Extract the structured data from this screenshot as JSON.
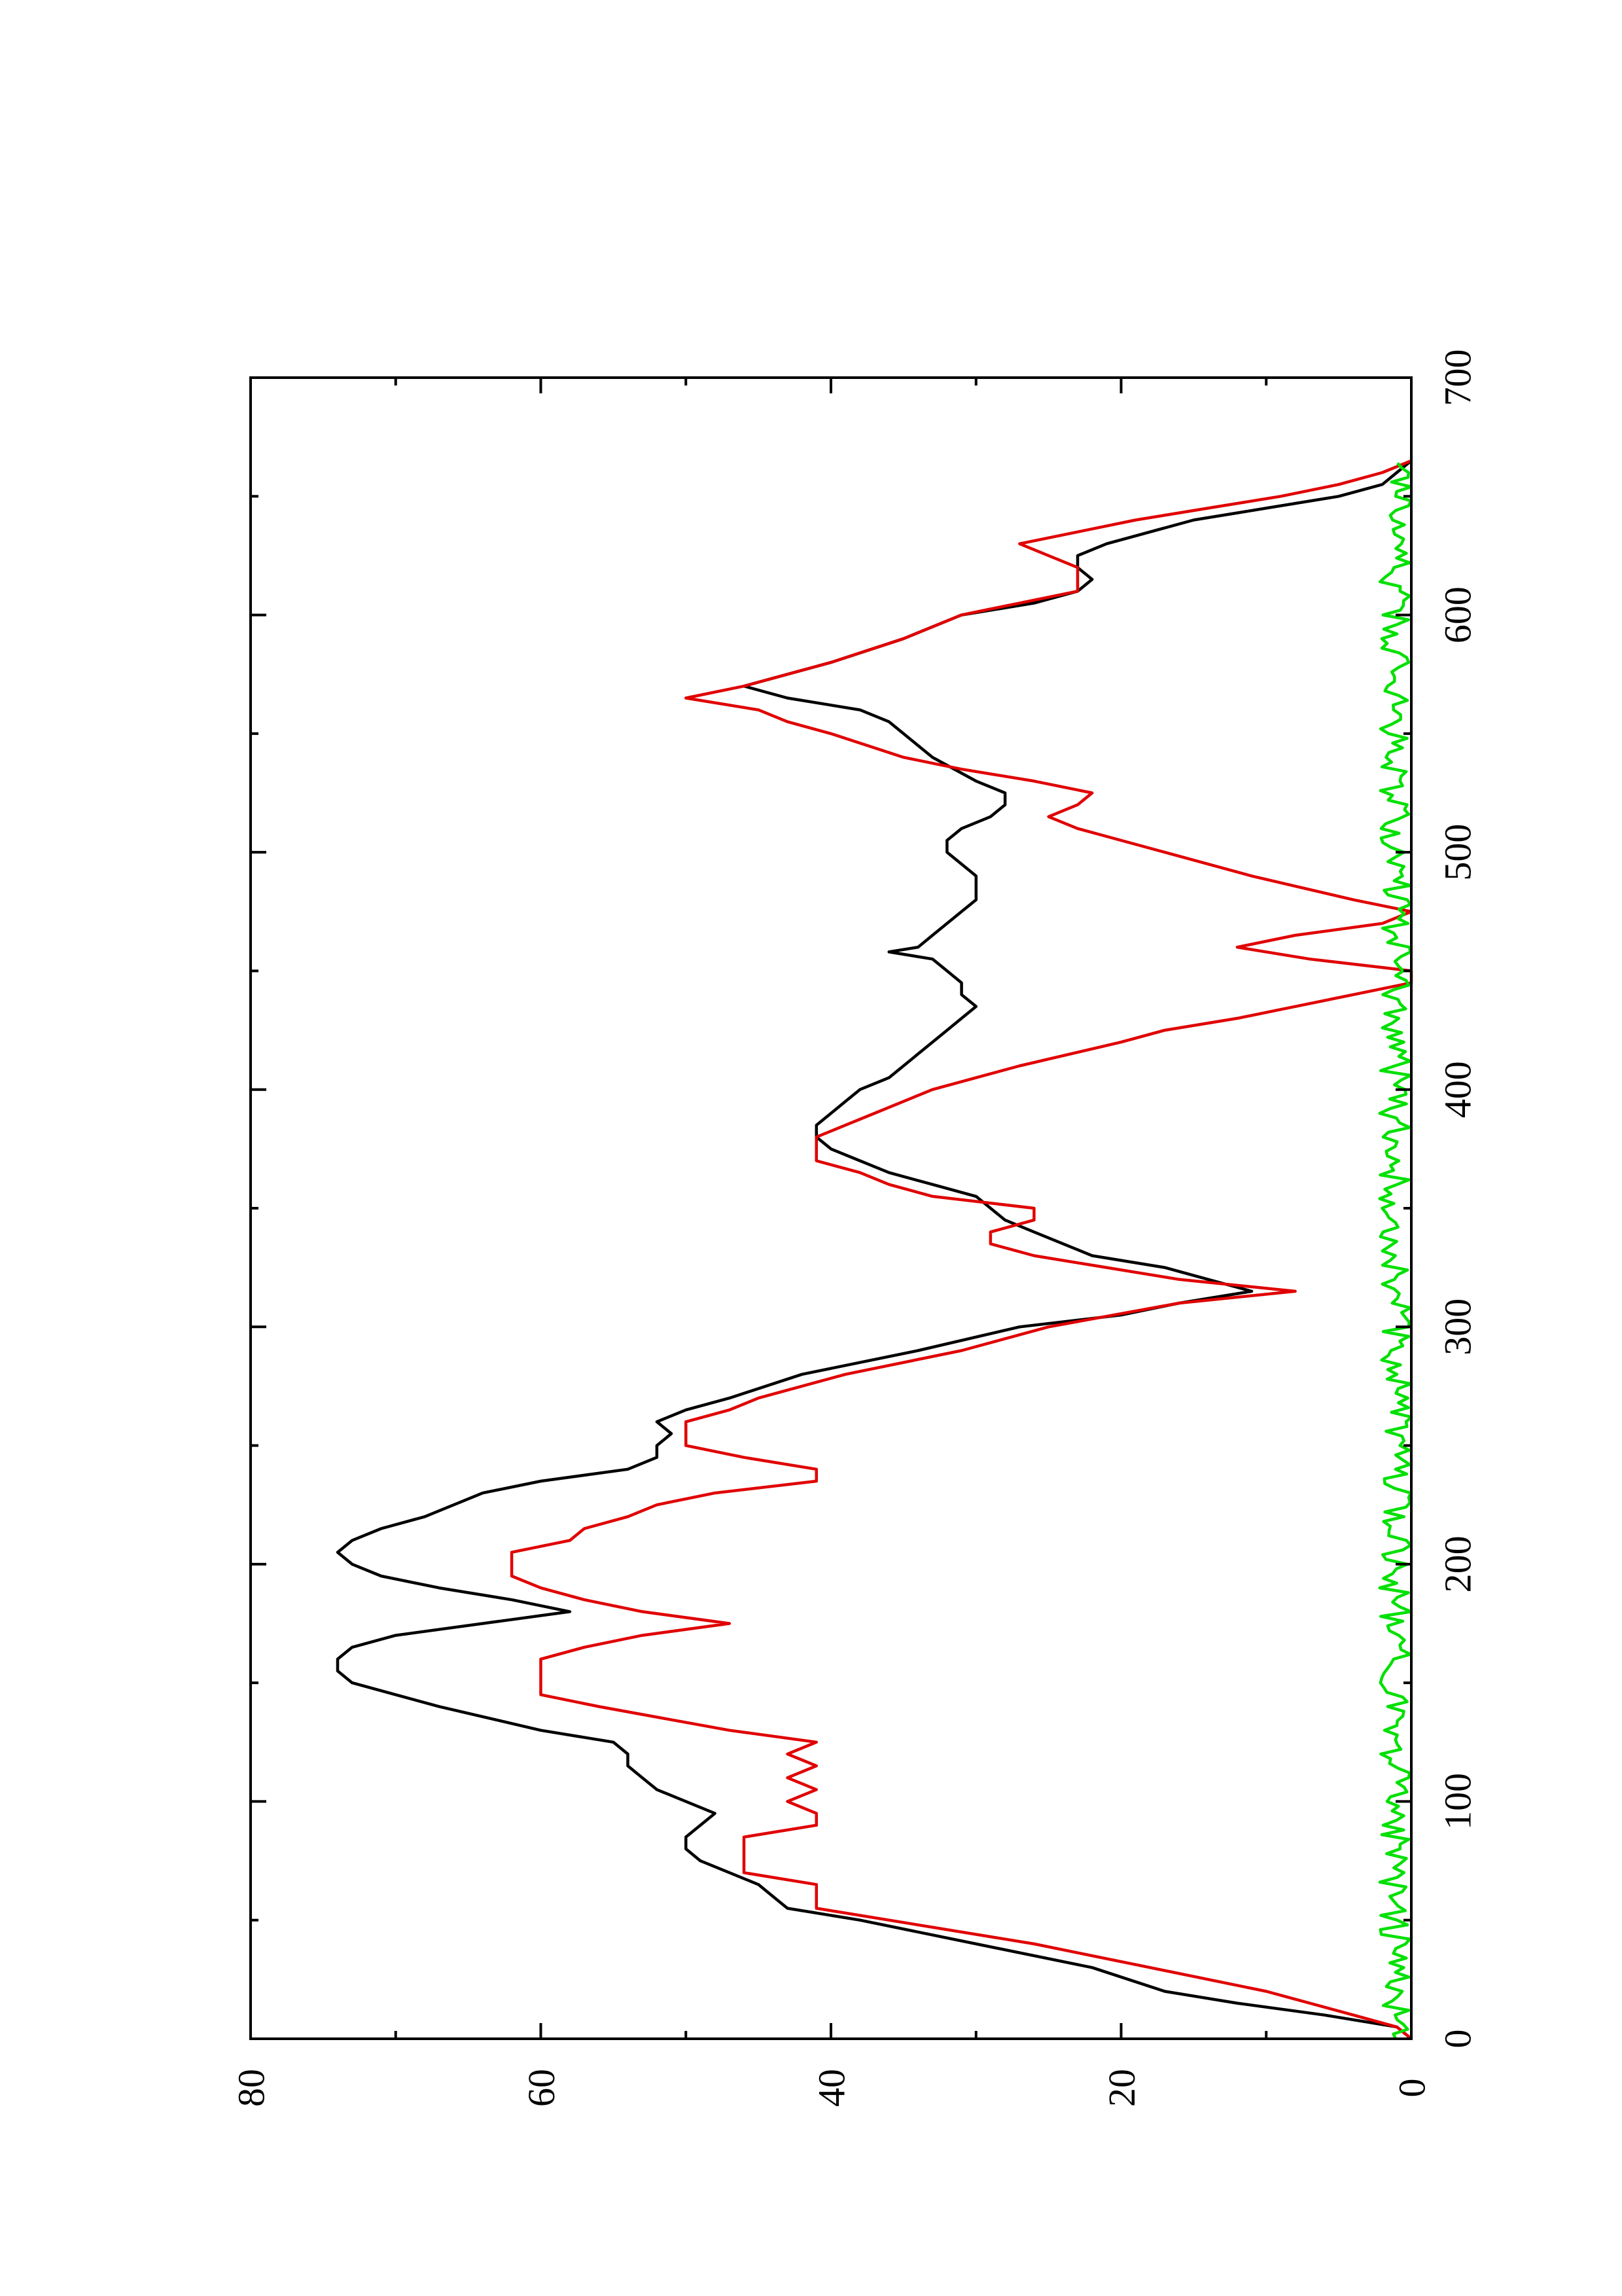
{
  "chart_data": {
    "type": "line",
    "title": "",
    "xlabel": "",
    "ylabel": "",
    "orientation": "rotated 90 degrees counter-clockwise",
    "xlim": [
      0,
      700
    ],
    "ylim": [
      0,
      80
    ],
    "x_ticks": [
      "0",
      "100",
      "200",
      "300",
      "400",
      "500",
      "600",
      "700"
    ],
    "y_ticks": [
      "0",
      "20",
      "40",
      "60",
      "80"
    ],
    "grid": false,
    "legend": "none",
    "series": [
      {
        "color": "#000000",
        "points": [
          [
            0,
            0
          ],
          [
            5,
            1
          ],
          [
            10,
            6
          ],
          [
            15,
            12
          ],
          [
            20,
            17
          ],
          [
            30,
            22
          ],
          [
            40,
            30
          ],
          [
            50,
            38
          ],
          [
            55,
            43
          ],
          [
            60,
            44
          ],
          [
            65,
            45
          ],
          [
            70,
            47
          ],
          [
            75,
            49
          ],
          [
            80,
            50
          ],
          [
            85,
            50
          ],
          [
            90,
            49
          ],
          [
            95,
            48
          ],
          [
            100,
            50
          ],
          [
            105,
            52
          ],
          [
            110,
            53
          ],
          [
            115,
            54
          ],
          [
            120,
            54
          ],
          [
            125,
            55
          ],
          [
            130,
            60
          ],
          [
            140,
            67
          ],
          [
            145,
            70
          ],
          [
            150,
            73
          ],
          [
            155,
            74
          ],
          [
            160,
            74
          ],
          [
            165,
            73
          ],
          [
            170,
            70
          ],
          [
            175,
            64
          ],
          [
            180,
            58
          ],
          [
            185,
            62
          ],
          [
            190,
            67
          ],
          [
            195,
            71
          ],
          [
            200,
            73
          ],
          [
            205,
            74
          ],
          [
            210,
            73
          ],
          [
            215,
            71
          ],
          [
            220,
            68
          ],
          [
            225,
            66
          ],
          [
            230,
            64
          ],
          [
            235,
            60
          ],
          [
            240,
            54
          ],
          [
            245,
            52
          ],
          [
            250,
            52
          ],
          [
            255,
            51
          ],
          [
            260,
            52
          ],
          [
            265,
            50
          ],
          [
            270,
            47
          ],
          [
            280,
            42
          ],
          [
            290,
            34
          ],
          [
            300,
            27
          ],
          [
            305,
            20
          ],
          [
            310,
            16
          ],
          [
            315,
            11
          ],
          [
            320,
            14
          ],
          [
            325,
            17
          ],
          [
            330,
            22
          ],
          [
            340,
            26
          ],
          [
            345,
            28
          ],
          [
            350,
            29
          ],
          [
            355,
            30
          ],
          [
            360,
            33
          ],
          [
            365,
            36
          ],
          [
            370,
            38
          ],
          [
            375,
            40
          ],
          [
            380,
            41
          ],
          [
            385,
            41
          ],
          [
            390,
            40
          ],
          [
            395,
            39
          ],
          [
            400,
            38
          ],
          [
            405,
            36
          ],
          [
            410,
            35
          ],
          [
            415,
            34
          ],
          [
            420,
            33
          ],
          [
            425,
            32
          ],
          [
            430,
            31
          ],
          [
            435,
            30
          ],
          [
            440,
            31
          ],
          [
            445,
            31
          ],
          [
            450,
            32
          ],
          [
            455,
            33
          ],
          [
            458,
            36
          ],
          [
            460,
            34
          ],
          [
            465,
            33
          ],
          [
            470,
            32
          ],
          [
            475,
            31
          ],
          [
            480,
            30
          ],
          [
            485,
            30
          ],
          [
            490,
            30
          ],
          [
            495,
            31
          ],
          [
            500,
            32
          ],
          [
            505,
            32
          ],
          [
            510,
            31
          ],
          [
            515,
            29
          ],
          [
            520,
            28
          ],
          [
            525,
            28
          ],
          [
            530,
            30
          ],
          [
            540,
            33
          ],
          [
            550,
            35
          ],
          [
            555,
            36
          ],
          [
            560,
            38
          ],
          [
            565,
            43
          ],
          [
            570,
            46
          ],
          [
            575,
            43
          ],
          [
            580,
            40
          ],
          [
            590,
            35
          ],
          [
            600,
            31
          ],
          [
            605,
            26
          ],
          [
            610,
            23
          ],
          [
            615,
            22
          ],
          [
            620,
            23
          ],
          [
            625,
            23
          ],
          [
            630,
            21
          ],
          [
            640,
            15
          ],
          [
            645,
            10
          ],
          [
            650,
            5
          ],
          [
            655,
            2
          ],
          [
            660,
            1
          ],
          [
            665,
            0
          ]
        ]
      },
      {
        "color": "#e00000",
        "points": [
          [
            0,
            0
          ],
          [
            5,
            1
          ],
          [
            10,
            4
          ],
          [
            20,
            10
          ],
          [
            30,
            18
          ],
          [
            40,
            26
          ],
          [
            50,
            36
          ],
          [
            55,
            41
          ],
          [
            60,
            41
          ],
          [
            65,
            41
          ],
          [
            70,
            46
          ],
          [
            75,
            46
          ],
          [
            80,
            46
          ],
          [
            85,
            46
          ],
          [
            90,
            41
          ],
          [
            95,
            41
          ],
          [
            100,
            43
          ],
          [
            105,
            41
          ],
          [
            110,
            43
          ],
          [
            115,
            41
          ],
          [
            120,
            43
          ],
          [
            125,
            41
          ],
          [
            130,
            47
          ],
          [
            140,
            56
          ],
          [
            145,
            60
          ],
          [
            150,
            60
          ],
          [
            155,
            60
          ],
          [
            160,
            60
          ],
          [
            165,
            57
          ],
          [
            170,
            53
          ],
          [
            175,
            47
          ],
          [
            180,
            53
          ],
          [
            185,
            57
          ],
          [
            190,
            60
          ],
          [
            195,
            62
          ],
          [
            200,
            62
          ],
          [
            205,
            62
          ],
          [
            210,
            58
          ],
          [
            215,
            57
          ],
          [
            220,
            54
          ],
          [
            225,
            52
          ],
          [
            230,
            48
          ],
          [
            235,
            41
          ],
          [
            240,
            41
          ],
          [
            245,
            46
          ],
          [
            250,
            50
          ],
          [
            255,
            50
          ],
          [
            260,
            50
          ],
          [
            265,
            47
          ],
          [
            270,
            45
          ],
          [
            280,
            39
          ],
          [
            290,
            31
          ],
          [
            300,
            25
          ],
          [
            310,
            16
          ],
          [
            315,
            8
          ],
          [
            320,
            16
          ],
          [
            330,
            26
          ],
          [
            335,
            29
          ],
          [
            340,
            29
          ],
          [
            345,
            26
          ],
          [
            350,
            26
          ],
          [
            355,
            33
          ],
          [
            360,
            36
          ],
          [
            365,
            38
          ],
          [
            370,
            41
          ],
          [
            375,
            41
          ],
          [
            380,
            41
          ],
          [
            385,
            39
          ],
          [
            390,
            37
          ],
          [
            395,
            35
          ],
          [
            400,
            33
          ],
          [
            405,
            30
          ],
          [
            410,
            27
          ],
          [
            420,
            20
          ],
          [
            425,
            17
          ],
          [
            430,
            12
          ],
          [
            435,
            8
          ],
          [
            440,
            4
          ],
          [
            445,
            0
          ],
          [
            450,
            0
          ],
          [
            455,
            7
          ],
          [
            460,
            12
          ],
          [
            465,
            8
          ],
          [
            470,
            2
          ],
          [
            475,
            0
          ],
          [
            480,
            4
          ],
          [
            490,
            11
          ],
          [
            500,
            17
          ],
          [
            505,
            20
          ],
          [
            510,
            23
          ],
          [
            515,
            25
          ],
          [
            520,
            23
          ],
          [
            525,
            22
          ],
          [
            530,
            26
          ],
          [
            535,
            31
          ],
          [
            540,
            35
          ],
          [
            550,
            40
          ],
          [
            555,
            43
          ],
          [
            560,
            45
          ],
          [
            565,
            50
          ],
          [
            570,
            46
          ],
          [
            575,
            43
          ],
          [
            580,
            40
          ],
          [
            590,
            35
          ],
          [
            600,
            31
          ],
          [
            605,
            27
          ],
          [
            610,
            23
          ],
          [
            615,
            23
          ],
          [
            620,
            23
          ],
          [
            625,
            25
          ],
          [
            630,
            27
          ],
          [
            635,
            23
          ],
          [
            640,
            19
          ],
          [
            645,
            14
          ],
          [
            650,
            9
          ],
          [
            655,
            5
          ],
          [
            660,
            2
          ],
          [
            665,
            0
          ]
        ]
      },
      {
        "color": "#00e000",
        "points": "low-amplitude noise between 0 and ~2 across x = 0 to 665"
      }
    ]
  }
}
